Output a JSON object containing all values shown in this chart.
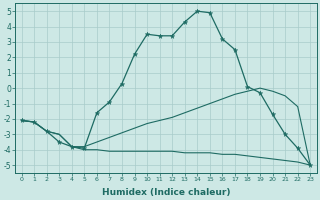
{
  "xlabel": "Humidex (Indice chaleur)",
  "xlim": [
    -0.5,
    23.5
  ],
  "ylim": [
    -5.5,
    5.5
  ],
  "xticks": [
    0,
    1,
    2,
    3,
    4,
    5,
    6,
    7,
    8,
    9,
    10,
    11,
    12,
    13,
    14,
    15,
    16,
    17,
    18,
    19,
    20,
    21,
    22,
    23
  ],
  "yticks": [
    -5,
    -4,
    -3,
    -2,
    -1,
    0,
    1,
    2,
    3,
    4,
    5
  ],
  "background_color": "#cde8e5",
  "grid_color": "#a8ccca",
  "line_color": "#1e6b63",
  "line1_x": [
    0,
    1,
    2,
    3,
    4,
    5,
    6,
    7,
    8,
    9,
    10,
    11,
    12,
    13,
    14,
    15,
    16,
    17,
    18,
    19,
    20,
    21,
    22,
    23
  ],
  "line1_y": [
    -2.1,
    -2.2,
    -2.8,
    -3.5,
    -3.8,
    -3.9,
    -1.6,
    -0.9,
    0.3,
    2.2,
    3.5,
    3.4,
    3.4,
    4.3,
    5.0,
    4.9,
    3.2,
    2.5,
    0.1,
    -0.3,
    -1.7,
    -3.0,
    -3.9,
    -5.0
  ],
  "line2_x": [
    0,
    1,
    2,
    3,
    4,
    5,
    6,
    7,
    8,
    9,
    10,
    11,
    12,
    13,
    14,
    15,
    16,
    17,
    18,
    19,
    20,
    21,
    22,
    23
  ],
  "line2_y": [
    -2.1,
    -2.2,
    -2.8,
    -3.0,
    -3.8,
    -4.0,
    -4.0,
    -4.1,
    -4.1,
    -4.1,
    -4.1,
    -4.1,
    -4.1,
    -4.2,
    -4.2,
    -4.2,
    -4.3,
    -4.3,
    -4.4,
    -4.5,
    -4.6,
    -4.7,
    -4.8,
    -5.0
  ],
  "line3_x": [
    0,
    1,
    2,
    3,
    4,
    5,
    6,
    7,
    8,
    9,
    10,
    11,
    12,
    13,
    14,
    15,
    16,
    17,
    18,
    19,
    20,
    21,
    22,
    23
  ],
  "line3_y": [
    -2.1,
    -2.2,
    -2.8,
    -3.0,
    -3.8,
    -3.8,
    -3.5,
    -3.2,
    -2.9,
    -2.6,
    -2.3,
    -2.1,
    -1.9,
    -1.6,
    -1.3,
    -1.0,
    -0.7,
    -0.4,
    -0.2,
    0.0,
    -0.2,
    -0.5,
    -1.2,
    -5.0
  ]
}
